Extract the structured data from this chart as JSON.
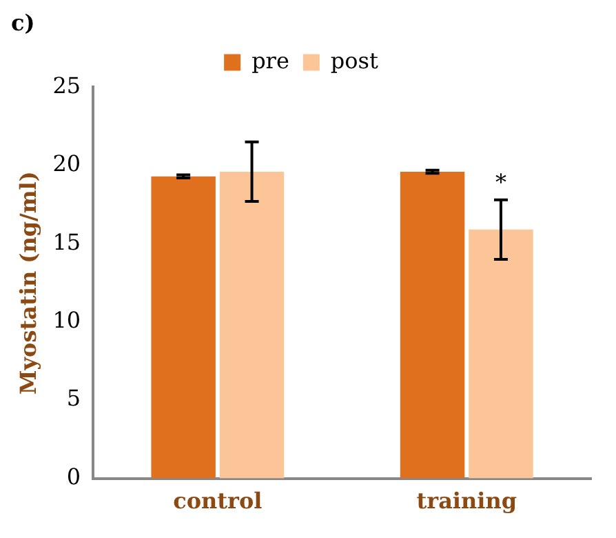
{
  "chart_data": {
    "type": "bar",
    "title": "c)",
    "ylabel": "Myostatin (ng/ml)",
    "categories": [
      "control",
      "training"
    ],
    "series": [
      {
        "name": "pre",
        "color": "#e0701e",
        "values": [
          19.3,
          19.6
        ],
        "errors": [
          0.1,
          0.1
        ]
      },
      {
        "name": "post",
        "color": "#fbc597",
        "values": [
          19.6,
          15.9
        ],
        "errors": [
          1.9,
          1.9
        ]
      }
    ],
    "ylim": [
      0,
      25
    ],
    "yticks": [
      0,
      5,
      10,
      15,
      20,
      25
    ],
    "grid": false,
    "legend": "top",
    "annotations": [
      {
        "text": "*",
        "x": "training",
        "y": 18.8
      }
    ]
  }
}
